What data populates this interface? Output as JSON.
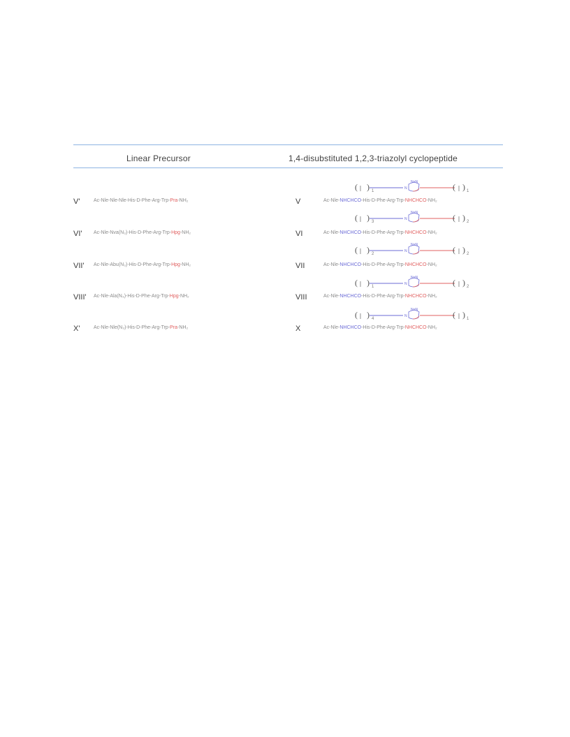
{
  "table": {
    "header_left": "Linear Precursor",
    "header_right": "1,4-disubstituted 1,2,3-triazolyl cyclopeptide",
    "rows": [
      {
        "label_left": "V'",
        "precursor_grey": "Ac-Nle-Nle-Nle-His-D-Phe-Arg-Trp-",
        "precursor_red": "Pra",
        "precursor_tail": "-NH₂",
        "label_right": "V",
        "product_grey_a": "Ac-Nle-",
        "product_blue": "NHCHCO",
        "product_grey_b": "-His-D-Phe-Arg-Trp-",
        "product_red": "NHCHCO",
        "product_tail": "-NH₂",
        "sub_left": "1",
        "sub_right": "1"
      },
      {
        "label_left": "VI'",
        "precursor_grey": "Ac-Nle-Nva(N₃)-His-D-Phe-Arg-Trp-",
        "precursor_red": "Hpg",
        "precursor_tail": "-NH₂",
        "label_right": "VI",
        "product_grey_a": "Ac-Nle-",
        "product_blue": "NHCHCO",
        "product_grey_b": "-His-D-Phe-Arg-Trp-",
        "product_red": "NHCHCO",
        "product_tail": "-NH₂",
        "sub_left": "3",
        "sub_right": "2"
      },
      {
        "label_left": "VII'",
        "precursor_grey": "Ac-Nle-Abu(N₃)-His-D-Phe-Arg-Trp-",
        "precursor_red": "Hpg",
        "precursor_tail": "-NH₂",
        "label_right": "VII",
        "product_grey_a": "Ac-Nle-",
        "product_blue": "NHCHCO",
        "product_grey_b": "-His-D-Phe-Arg-Trp-",
        "product_red": "NHCHCO",
        "product_tail": "-NH₂",
        "sub_left": "2",
        "sub_right": "2"
      },
      {
        "label_left": "VIII'",
        "precursor_grey": "Ac-Nle-Ala(N₃)-His-D-Phe-Arg-Trp-",
        "precursor_red": "Hpg",
        "precursor_tail": "-NH₂",
        "label_right": "VIII",
        "product_grey_a": "Ac-Nle-",
        "product_blue": "NHCHCO",
        "product_grey_b": "-His-D-Phe-Arg-Trp-",
        "product_red": "NHCHCO",
        "product_tail": "-NH₂",
        "sub_left": "1",
        "sub_right": "2"
      },
      {
        "label_left": "X'",
        "precursor_grey": "Ac-Nle-Nle(N₃)-His-D-Phe-Arg-Trp-",
        "precursor_red": "Pra",
        "precursor_tail": "-NH₂",
        "label_right": "X",
        "product_grey_a": "Ac-Nle-",
        "product_blue": "NHCHCO",
        "product_grey_b": "-His-D-Phe-Arg-Trp-",
        "product_red": "NHCHCO",
        "product_tail": "-NH₂",
        "sub_left": "4",
        "sub_right": "1"
      }
    ]
  },
  "colors": {
    "rule": "#8eb4e3",
    "blue_segment": "#6b6bd6",
    "red_segment": "#e06060",
    "text": "#404040"
  }
}
